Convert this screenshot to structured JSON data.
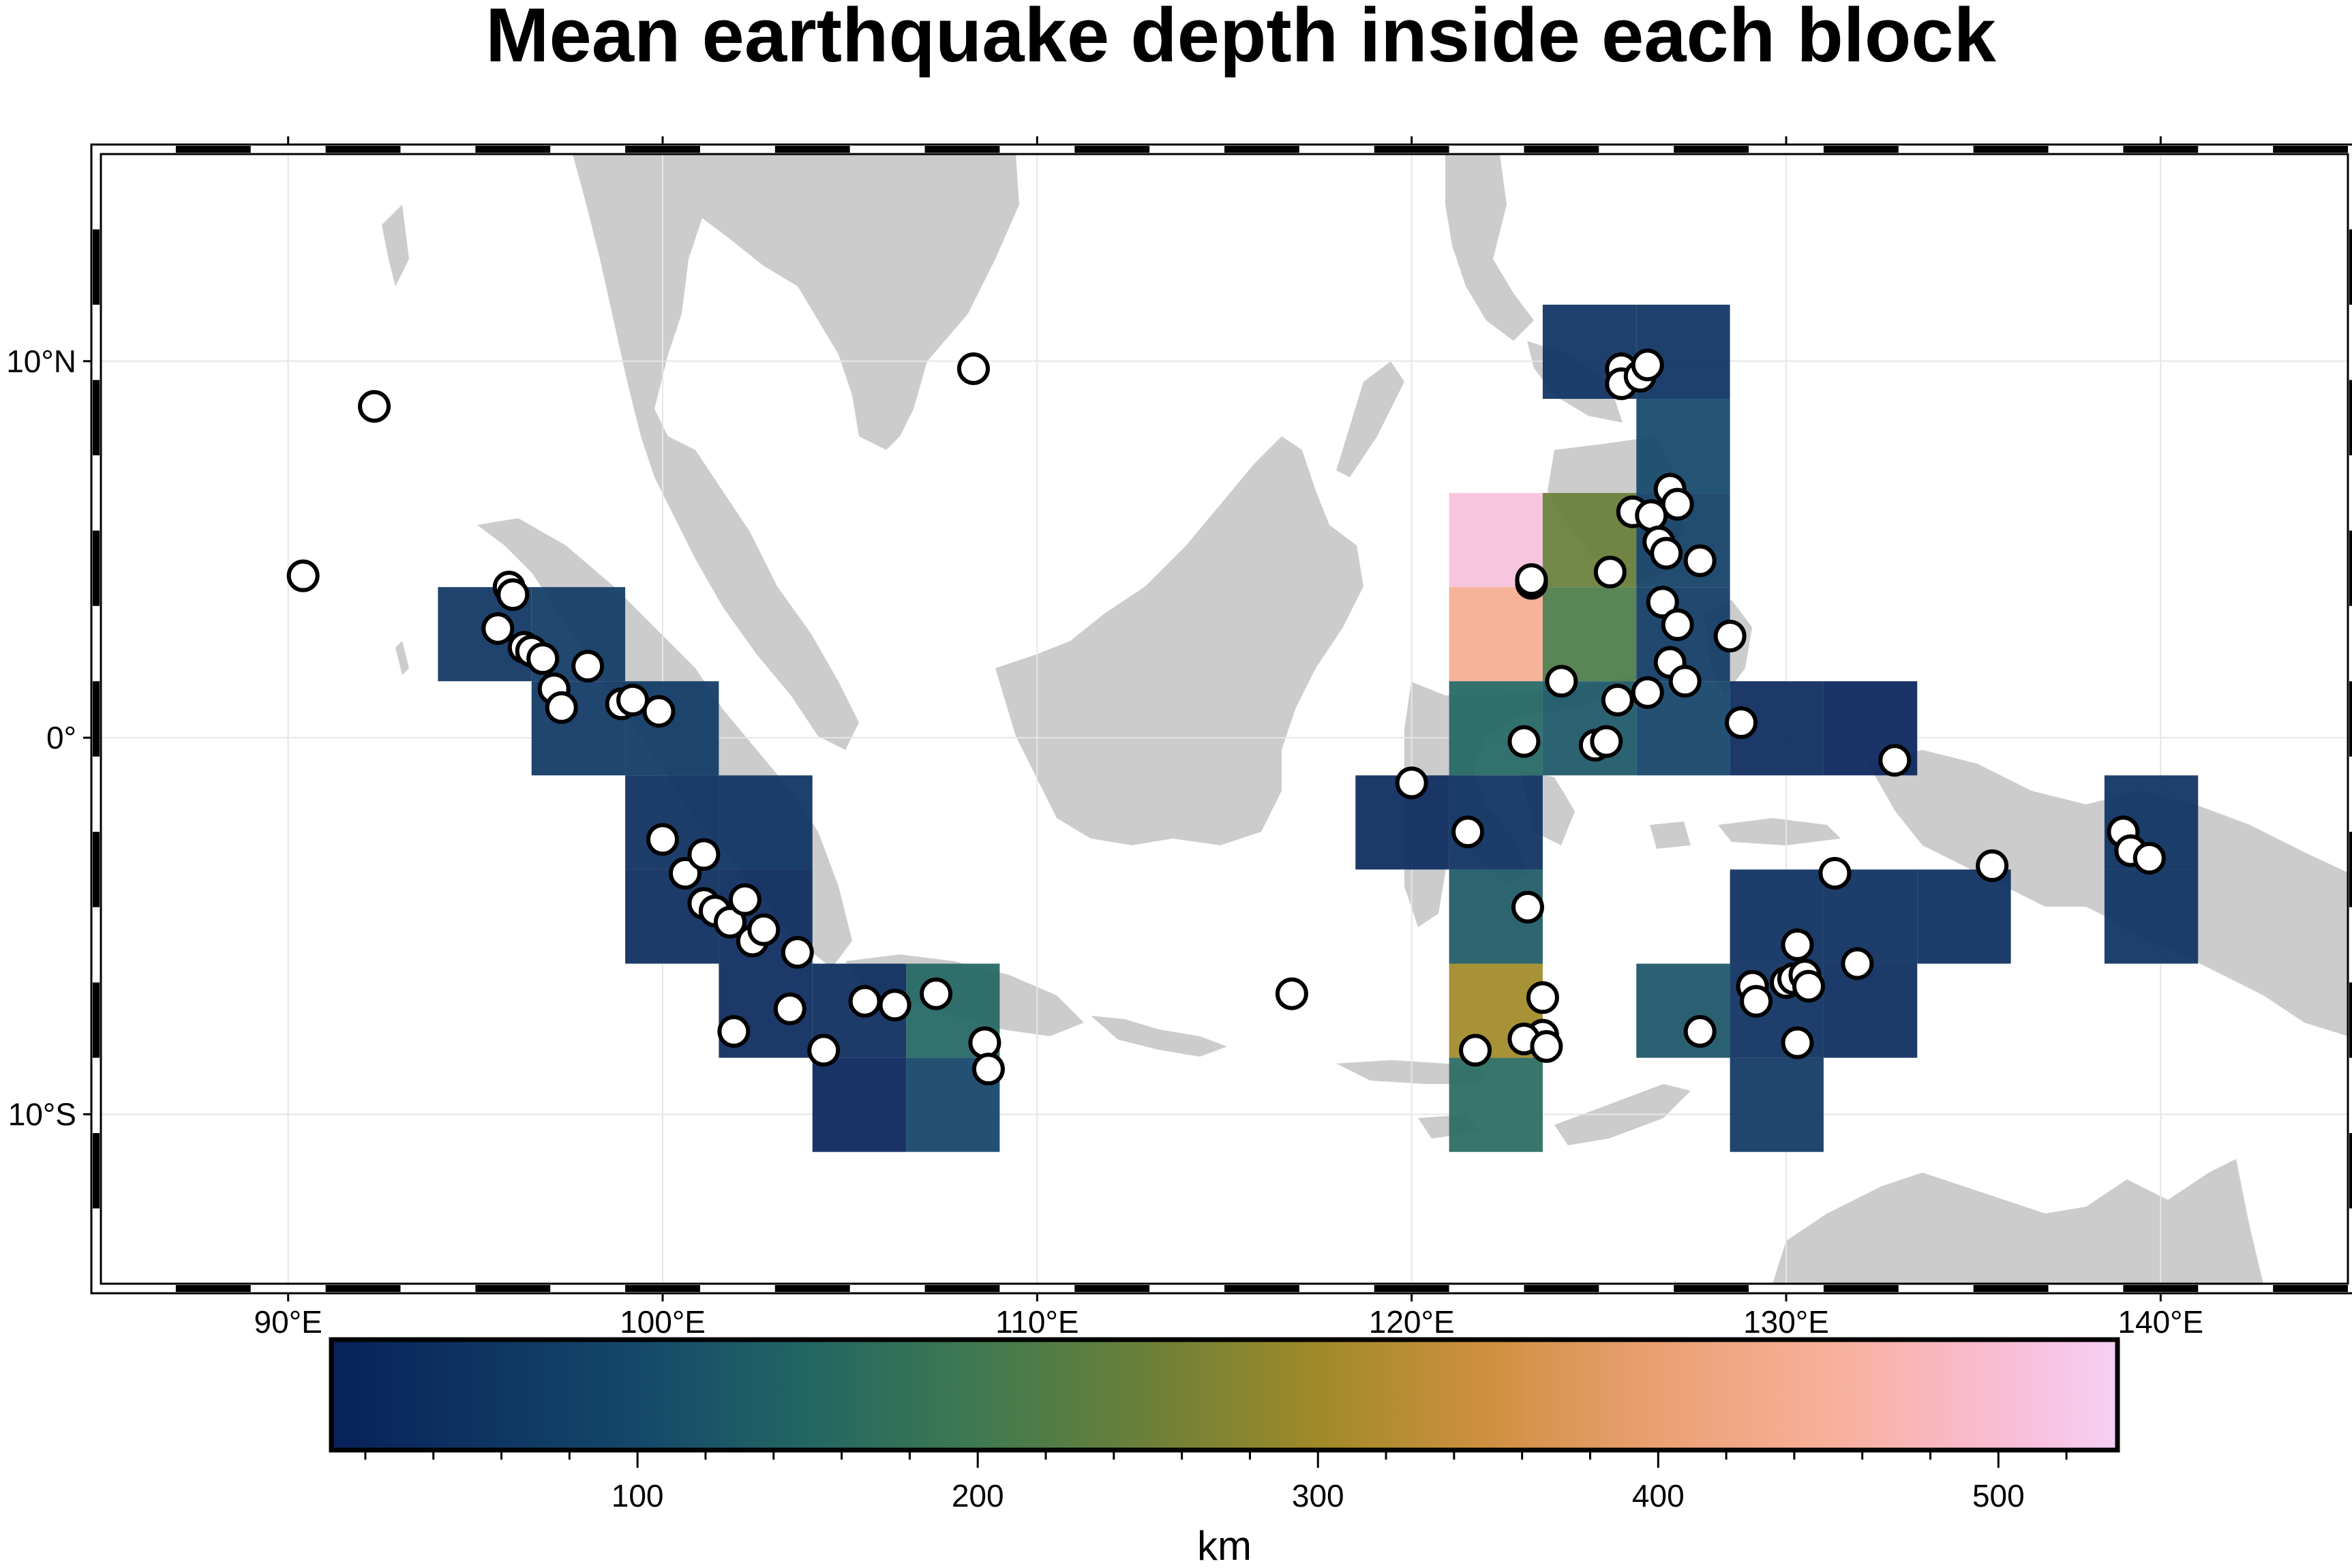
{
  "title": "Mean earthquake depth inside each block",
  "colorbar": {
    "label": "km",
    "range": [
      10,
      535
    ],
    "ticks": [
      100,
      200,
      300,
      400,
      500
    ],
    "tick_labels": [
      "100",
      "200",
      "300",
      "400",
      "500"
    ],
    "stops": [
      {
        "v": 10,
        "color": "#08215a"
      },
      {
        "v": 100,
        "color": "#14486a"
      },
      {
        "v": 150,
        "color": "#236663"
      },
      {
        "v": 200,
        "color": "#3f7a50"
      },
      {
        "v": 250,
        "color": "#6c8038"
      },
      {
        "v": 300,
        "color": "#a08a28"
      },
      {
        "v": 350,
        "color": "#cf9040"
      },
      {
        "v": 400,
        "color": "#eba073"
      },
      {
        "v": 450,
        "color": "#f8b09a"
      },
      {
        "v": 500,
        "color": "#f9bcd4"
      },
      {
        "v": 535,
        "color": "#f6cff5"
      }
    ]
  },
  "map": {
    "region": {
      "lon_min": 85,
      "lon_max": 145,
      "lat_min": -14.5,
      "lat_max": 15.5
    },
    "x_ticks": [
      90,
      100,
      110,
      120,
      130,
      140
    ],
    "x_tick_labels": [
      "90°E",
      "100°E",
      "110°E",
      "120°E",
      "130°E",
      "140°E"
    ],
    "y_ticks": [
      10,
      0,
      -10
    ],
    "y_tick_labels": [
      "10°N",
      "0°",
      "10°S"
    ],
    "land_color": "#cccccc",
    "block_size_deg": 2.5,
    "blocks": [
      {
        "lon": 94,
        "lat": 1.5,
        "depth": 55
      },
      {
        "lon": 96.5,
        "lat": 1.5,
        "depth": 70
      },
      {
        "lon": 96.5,
        "lat": -1,
        "depth": 60
      },
      {
        "lon": 99,
        "lat": -1,
        "depth": 65
      },
      {
        "lon": 99,
        "lat": -3.5,
        "depth": 40
      },
      {
        "lon": 99,
        "lat": -6,
        "depth": 35
      },
      {
        "lon": 101.5,
        "lat": -3.5,
        "depth": 50
      },
      {
        "lon": 101.5,
        "lat": -6,
        "depth": 30
      },
      {
        "lon": 101.5,
        "lat": -8.5,
        "depth": 30
      },
      {
        "lon": 104,
        "lat": -8.5,
        "depth": 35
      },
      {
        "lon": 106.5,
        "lat": -8.5,
        "depth": 150
      },
      {
        "lon": 104,
        "lat": -11,
        "depth": 20
      },
      {
        "lon": 106.5,
        "lat": -11,
        "depth": 90
      },
      {
        "lon": 123.5,
        "lat": 9,
        "depth": 50
      },
      {
        "lon": 126,
        "lat": 9,
        "depth": 50
      },
      {
        "lon": 126,
        "lat": 6.5,
        "depth": 100
      },
      {
        "lon": 121,
        "lat": 4,
        "depth": 510
      },
      {
        "lon": 123.5,
        "lat": 4,
        "depth": 245
      },
      {
        "lon": 126,
        "lat": 4,
        "depth": 80
      },
      {
        "lon": 121,
        "lat": 1.5,
        "depth": 440
      },
      {
        "lon": 123.5,
        "lat": 1.5,
        "depth": 215
      },
      {
        "lon": 126,
        "lat": 1.5,
        "depth": 70
      },
      {
        "lon": 121,
        "lat": -1,
        "depth": 150
      },
      {
        "lon": 123.5,
        "lat": -1,
        "depth": 125
      },
      {
        "lon": 126,
        "lat": -1,
        "depth": 90
      },
      {
        "lon": 128.5,
        "lat": -1,
        "depth": 30
      },
      {
        "lon": 131,
        "lat": -1,
        "depth": 20
      },
      {
        "lon": 118.5,
        "lat": -3.5,
        "depth": 30
      },
      {
        "lon": 121,
        "lat": -3.5,
        "depth": 45
      },
      {
        "lon": 121,
        "lat": -6,
        "depth": 130
      },
      {
        "lon": 121,
        "lat": -8.5,
        "depth": 300
      },
      {
        "lon": 121,
        "lat": -11,
        "depth": 160
      },
      {
        "lon": 128.5,
        "lat": -6,
        "depth": 40
      },
      {
        "lon": 131,
        "lat": -6,
        "depth": 40
      },
      {
        "lon": 133.5,
        "lat": -6,
        "depth": 40
      },
      {
        "lon": 126,
        "lat": -8.5,
        "depth": 120
      },
      {
        "lon": 128.5,
        "lat": -8.5,
        "depth": 45
      },
      {
        "lon": 131,
        "lat": -8.5,
        "depth": 35
      },
      {
        "lon": 128.5,
        "lat": -11,
        "depth": 60
      },
      {
        "lon": 138.5,
        "lat": -6,
        "depth": 50
      },
      {
        "lon": 138.5,
        "lat": -3.5,
        "depth": 50
      }
    ],
    "earthquakes": [
      [
        92.3,
        8.8
      ],
      [
        90.4,
        4.3
      ],
      [
        108.3,
        9.8
      ],
      [
        116.8,
        -6.8
      ],
      [
        95.9,
        4.0
      ],
      [
        96.0,
        3.8
      ],
      [
        95.6,
        2.9
      ],
      [
        96.3,
        2.4
      ],
      [
        96.5,
        2.3
      ],
      [
        96.8,
        2.1
      ],
      [
        97.1,
        1.3
      ],
      [
        97.3,
        0.8
      ],
      [
        98.0,
        1.9
      ],
      [
        98.9,
        0.9
      ],
      [
        99.2,
        1.0
      ],
      [
        99.9,
        0.7
      ],
      [
        100.0,
        -2.7
      ],
      [
        100.6,
        -3.6
      ],
      [
        101.1,
        -3.1
      ],
      [
        101.1,
        -4.4
      ],
      [
        101.4,
        -4.6
      ],
      [
        101.8,
        -4.9
      ],
      [
        102.2,
        -4.3
      ],
      [
        102.4,
        -5.4
      ],
      [
        102.7,
        -5.1
      ],
      [
        103.6,
        -5.7
      ],
      [
        103.4,
        -7.2
      ],
      [
        101.9,
        -7.8
      ],
      [
        104.3,
        -8.3
      ],
      [
        105.4,
        -7.0
      ],
      [
        106.2,
        -7.1
      ],
      [
        107.3,
        -6.8
      ],
      [
        108.6,
        -8.1
      ],
      [
        108.7,
        -8.8
      ],
      [
        125.6,
        9.8
      ],
      [
        125.6,
        9.4
      ],
      [
        126.1,
        9.6
      ],
      [
        126.3,
        9.9
      ],
      [
        126.9,
        6.6
      ],
      [
        127.1,
        6.2
      ],
      [
        125.9,
        6.0
      ],
      [
        126.4,
        5.9
      ],
      [
        126.6,
        5.2
      ],
      [
        126.8,
        4.9
      ],
      [
        125.3,
        4.4
      ],
      [
        127.7,
        4.7
      ],
      [
        123.2,
        4.1
      ],
      [
        123.2,
        4.2
      ],
      [
        126.7,
        3.6
      ],
      [
        127.1,
        3.0
      ],
      [
        128.5,
        2.7
      ],
      [
        126.9,
        2.0
      ],
      [
        127.3,
        1.5
      ],
      [
        125.5,
        1.0
      ],
      [
        126.3,
        1.2
      ],
      [
        124.0,
        1.5
      ],
      [
        124.9,
        -0.2
      ],
      [
        125.2,
        -0.1
      ],
      [
        123.0,
        -0.1
      ],
      [
        128.8,
        0.4
      ],
      [
        132.9,
        -0.6
      ],
      [
        120.0,
        -1.2
      ],
      [
        121.5,
        -2.5
      ],
      [
        123.1,
        -4.5
      ],
      [
        123.5,
        -6.9
      ],
      [
        123.5,
        -7.9
      ],
      [
        123.0,
        -8.0
      ],
      [
        123.6,
        -8.2
      ],
      [
        121.7,
        -8.3
      ],
      [
        127.7,
        -7.8
      ],
      [
        129.1,
        -6.6
      ],
      [
        129.2,
        -7.0
      ],
      [
        130.0,
        -6.5
      ],
      [
        130.2,
        -6.4
      ],
      [
        130.5,
        -6.3
      ],
      [
        130.6,
        -6.6
      ],
      [
        130.3,
        -5.5
      ],
      [
        130.3,
        -8.1
      ],
      [
        131.3,
        -3.6
      ],
      [
        131.9,
        -6.0
      ],
      [
        135.5,
        -3.4
      ],
      [
        139.0,
        -2.5
      ],
      [
        139.2,
        -3.0
      ],
      [
        139.7,
        -3.2
      ]
    ]
  }
}
